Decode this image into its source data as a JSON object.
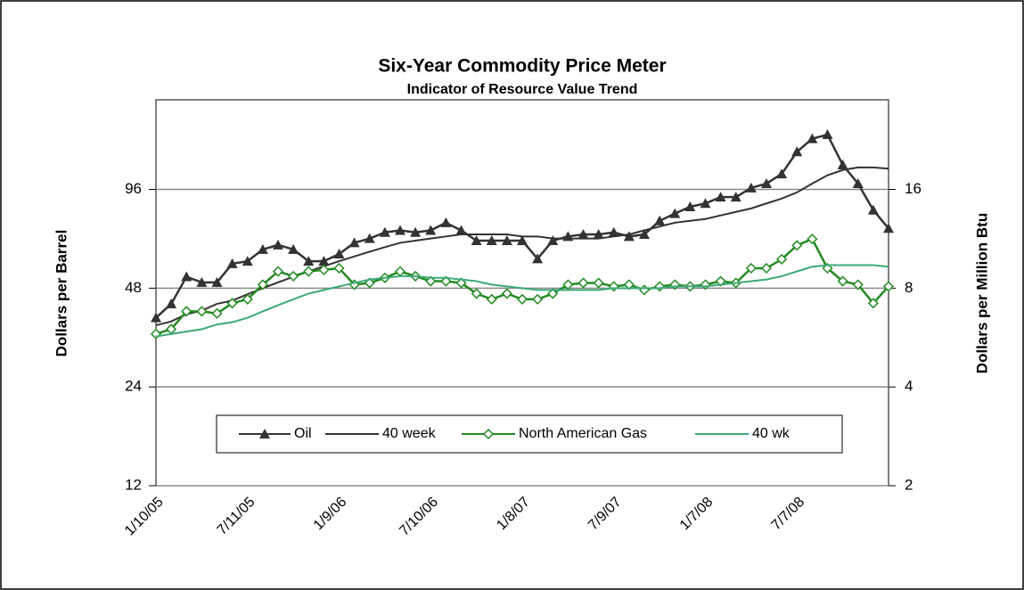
{
  "chart_data": {
    "type": "line",
    "title": "Six-Year Commodity Price Meter",
    "subtitle": "Indicator of Resource  Value Trend",
    "y_label": "Dollars per Barrel",
    "y2_label": "Dollars per Million Btu",
    "categories": [
      "1/10/05",
      null,
      null,
      null,
      null,
      null,
      "7/11/05",
      null,
      null,
      null,
      null,
      null,
      "1/9/06",
      null,
      null,
      null,
      null,
      null,
      "7/10/06",
      null,
      null,
      null,
      null,
      null,
      "1/8/07",
      null,
      null,
      null,
      null,
      null,
      "7/9/07",
      null,
      null,
      null,
      null,
      null,
      "1/7/08",
      null,
      null,
      null,
      null,
      null,
      "7/7/08",
      null,
      null,
      null,
      null,
      null,
      null
    ],
    "series": [
      {
        "name": "Oil",
        "color": "#333333",
        "marker": "triangle",
        "values": [
          39,
          43,
          52,
          50,
          50,
          57,
          58,
          63,
          65,
          63,
          58,
          58,
          61,
          66,
          68,
          71,
          72,
          71,
          72,
          76,
          72,
          67,
          67,
          67,
          67,
          59,
          67,
          69,
          70,
          70,
          71,
          69,
          70,
          77,
          81,
          85,
          87,
          91,
          91,
          97,
          100,
          107,
          125,
          137,
          141,
          114,
          100,
          83,
          73
        ]
      },
      {
        "name": "40 week",
        "color": "#333333",
        "values": [
          37,
          38,
          40,
          41,
          43,
          44,
          46,
          48,
          50,
          52,
          54,
          56,
          58,
          60,
          62,
          64,
          66,
          67,
          68,
          69,
          70,
          70,
          70,
          70,
          69,
          69,
          68,
          68,
          68,
          68,
          69,
          70,
          72,
          74,
          76,
          77,
          78,
          80,
          82,
          84,
          87,
          90,
          94,
          100,
          106,
          110,
          112,
          112,
          111
        ]
      },
      {
        "name": "North American Gas",
        "color": "#228b22",
        "marker": "diamond",
        "axis": "y2",
        "values": [
          5.8,
          6.0,
          6.8,
          6.8,
          6.7,
          7.2,
          7.4,
          8.2,
          9.0,
          8.7,
          9.0,
          9.1,
          9.2,
          8.2,
          8.3,
          8.6,
          9.0,
          8.7,
          8.4,
          8.4,
          8.3,
          7.7,
          7.4,
          7.7,
          7.4,
          7.4,
          7.7,
          8.2,
          8.3,
          8.3,
          8.1,
          8.2,
          7.9,
          8.1,
          8.2,
          8.1,
          8.2,
          8.4,
          8.3,
          9.2,
          9.2,
          9.8,
          10.8,
          11.3,
          9.2,
          8.4,
          8.2,
          7.2,
          8.1
        ]
      },
      {
        "name": "40 wk",
        "color": "#3caa78",
        "axis": "y2",
        "values": [
          5.7,
          5.8,
          5.9,
          6.0,
          6.2,
          6.3,
          6.5,
          6.8,
          7.1,
          7.4,
          7.7,
          7.9,
          8.1,
          8.3,
          8.5,
          8.6,
          8.7,
          8.7,
          8.6,
          8.6,
          8.5,
          8.4,
          8.2,
          8.1,
          8.0,
          7.9,
          7.9,
          7.9,
          7.9,
          7.9,
          8.0,
          8.0,
          8.0,
          8.0,
          8.1,
          8.1,
          8.1,
          8.2,
          8.3,
          8.4,
          8.5,
          8.7,
          9.0,
          9.3,
          9.4,
          9.4,
          9.4,
          9.4,
          9.3
        ]
      }
    ],
    "ylim": [
      12,
      180
    ],
    "yticks": [
      12,
      24,
      48,
      96
    ],
    "y_log": true,
    "y2lim": [
      2,
      30
    ],
    "y2ticks": [
      2,
      4,
      8,
      16
    ],
    "y2_log": true,
    "grid": true,
    "legend": "inside-bottom"
  }
}
